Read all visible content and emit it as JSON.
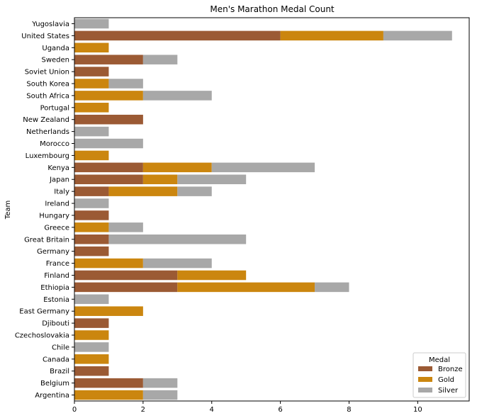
{
  "chart_data": {
    "type": "bar",
    "orientation": "horizontal",
    "stacked": true,
    "title": "Men's Marathon Medal Count",
    "xlabel": "",
    "ylabel": "Team",
    "xlim": [
      0,
      11.5
    ],
    "xticks": [
      0,
      2,
      4,
      6,
      8,
      10
    ],
    "grid": false,
    "legend": {
      "title": "Medal",
      "position": "lower-right"
    },
    "categories": [
      "Yugoslavia",
      "United States",
      "Uganda",
      "Sweden",
      "Soviet Union",
      "South Korea",
      "South Africa",
      "Portugal",
      "New Zealand",
      "Netherlands",
      "Morocco",
      "Luxembourg",
      "Kenya",
      "Japan",
      "Italy",
      "Ireland",
      "Hungary",
      "Greece",
      "Great Britain",
      "Germany",
      "France",
      "Finland",
      "Ethiopia",
      "Estonia",
      "East Germany",
      "Djibouti",
      "Czechoslovakia",
      "Chile",
      "Canada",
      "Brazil",
      "Belgium",
      "Argentina"
    ],
    "series": [
      {
        "name": "Bronze",
        "color": "#9b5a34",
        "values": [
          0,
          6,
          0,
          2,
          1,
          0,
          0,
          0,
          2,
          0,
          0,
          0,
          2,
          2,
          1,
          0,
          1,
          0,
          1,
          1,
          0,
          3,
          3,
          0,
          0,
          1,
          0,
          0,
          0,
          1,
          2,
          0
        ]
      },
      {
        "name": "Gold",
        "color": "#cb860f",
        "values": [
          0,
          3,
          1,
          0,
          0,
          1,
          2,
          1,
          0,
          0,
          0,
          1,
          2,
          1,
          2,
          0,
          0,
          1,
          0,
          0,
          2,
          2,
          4,
          0,
          2,
          0,
          1,
          0,
          1,
          0,
          0,
          2
        ]
      },
      {
        "name": "Silver",
        "color": "#a8a8a8",
        "values": [
          1,
          2,
          0,
          1,
          0,
          1,
          2,
          0,
          0,
          1,
          2,
          0,
          3,
          2,
          1,
          1,
          0,
          1,
          4,
          0,
          2,
          0,
          1,
          1,
          0,
          0,
          0,
          1,
          0,
          0,
          1,
          1
        ]
      }
    ]
  }
}
